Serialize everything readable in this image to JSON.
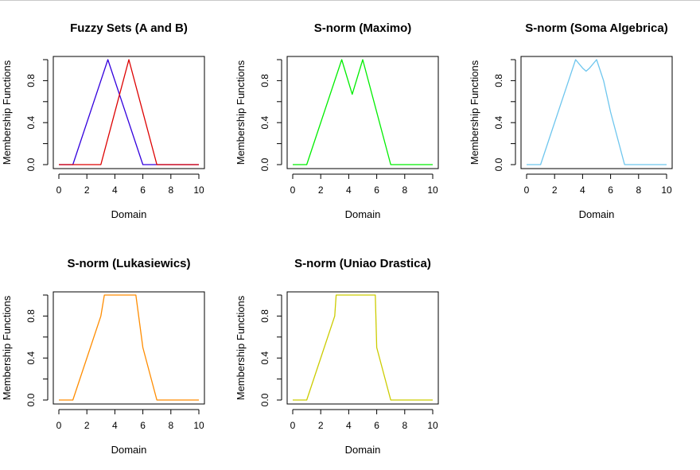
{
  "chart_data": [
    {
      "type": "line",
      "title": "Fuzzy Sets (A and B)",
      "xlabel": "Domain",
      "ylabel": "Membership Functions",
      "xlim": [
        0,
        10
      ],
      "ylim": [
        0,
        1
      ],
      "xticks": [
        "0",
        "2",
        "4",
        "6",
        "8",
        "10"
      ],
      "yticks": [
        "0.0",
        "0.4",
        "0.8"
      ],
      "series": [
        {
          "color": "#3300dd",
          "x": [
            0,
            1,
            3.5,
            6,
            10
          ],
          "y": [
            0,
            0,
            1,
            0,
            0
          ]
        },
        {
          "color": "#dd0000",
          "x": [
            0,
            3,
            5,
            7,
            10
          ],
          "y": [
            0,
            0,
            1,
            0,
            0
          ]
        }
      ]
    },
    {
      "type": "line",
      "title": "S-norm (Maximo)",
      "xlabel": "Domain",
      "ylabel": "Membership Functions",
      "xlim": [
        0,
        10
      ],
      "ylim": [
        0,
        1
      ],
      "xticks": [
        "0",
        "2",
        "4",
        "6",
        "8",
        "10"
      ],
      "yticks": [
        "0.0",
        "0.4",
        "0.8"
      ],
      "series": [
        {
          "color": "#00ee00",
          "x": [
            0,
            1,
            3.5,
            4.25,
            5,
            7,
            10
          ],
          "y": [
            0,
            0,
            1,
            0.67,
            1,
            0,
            0
          ]
        }
      ]
    },
    {
      "type": "line",
      "title": "S-norm (Soma Algebrica)",
      "xlabel": "Domain",
      "ylabel": "Membership Functions",
      "xlim": [
        0,
        10
      ],
      "ylim": [
        0,
        1
      ],
      "xticks": [
        "0",
        "2",
        "4",
        "6",
        "8",
        "10"
      ],
      "yticks": [
        "0.0",
        "0.4",
        "0.8"
      ],
      "series": [
        {
          "color": "#6ec6ee",
          "x": [
            0,
            1,
            3,
            3.5,
            4,
            4.25,
            4.5,
            5,
            5.5,
            6,
            7,
            10
          ],
          "y": [
            0,
            0,
            0.8,
            1,
            0.92,
            0.89,
            0.92,
            1,
            0.8,
            0.5,
            0,
            0
          ]
        }
      ]
    },
    {
      "type": "line",
      "title": "S-norm (Lukasiewics)",
      "xlabel": "Domain",
      "ylabel": "Membership Functions",
      "xlim": [
        0,
        10
      ],
      "ylim": [
        0,
        1
      ],
      "xticks": [
        "0",
        "2",
        "4",
        "6",
        "8",
        "10"
      ],
      "yticks": [
        "0.0",
        "0.4",
        "0.8"
      ],
      "series": [
        {
          "color": "#ff8c00",
          "x": [
            0,
            1,
            3,
            3.25,
            5.5,
            6,
            7,
            10
          ],
          "y": [
            0,
            0,
            0.8,
            1,
            1,
            0.5,
            0,
            0
          ]
        }
      ]
    },
    {
      "type": "line",
      "title": "S-norm (Uniao Drastica)",
      "xlabel": "Domain",
      "ylabel": "Membership Functions",
      "xlim": [
        0,
        10
      ],
      "ylim": [
        0,
        1
      ],
      "xticks": [
        "0",
        "2",
        "4",
        "6",
        "8",
        "10"
      ],
      "yticks": [
        "0.0",
        "0.4",
        "0.8"
      ],
      "series": [
        {
          "color": "#cccc00",
          "x": [
            0,
            1,
            3,
            3.1,
            5.9,
            6,
            7,
            10
          ],
          "y": [
            0,
            0,
            0.8,
            1,
            1,
            0.5,
            0,
            0
          ]
        }
      ]
    }
  ]
}
